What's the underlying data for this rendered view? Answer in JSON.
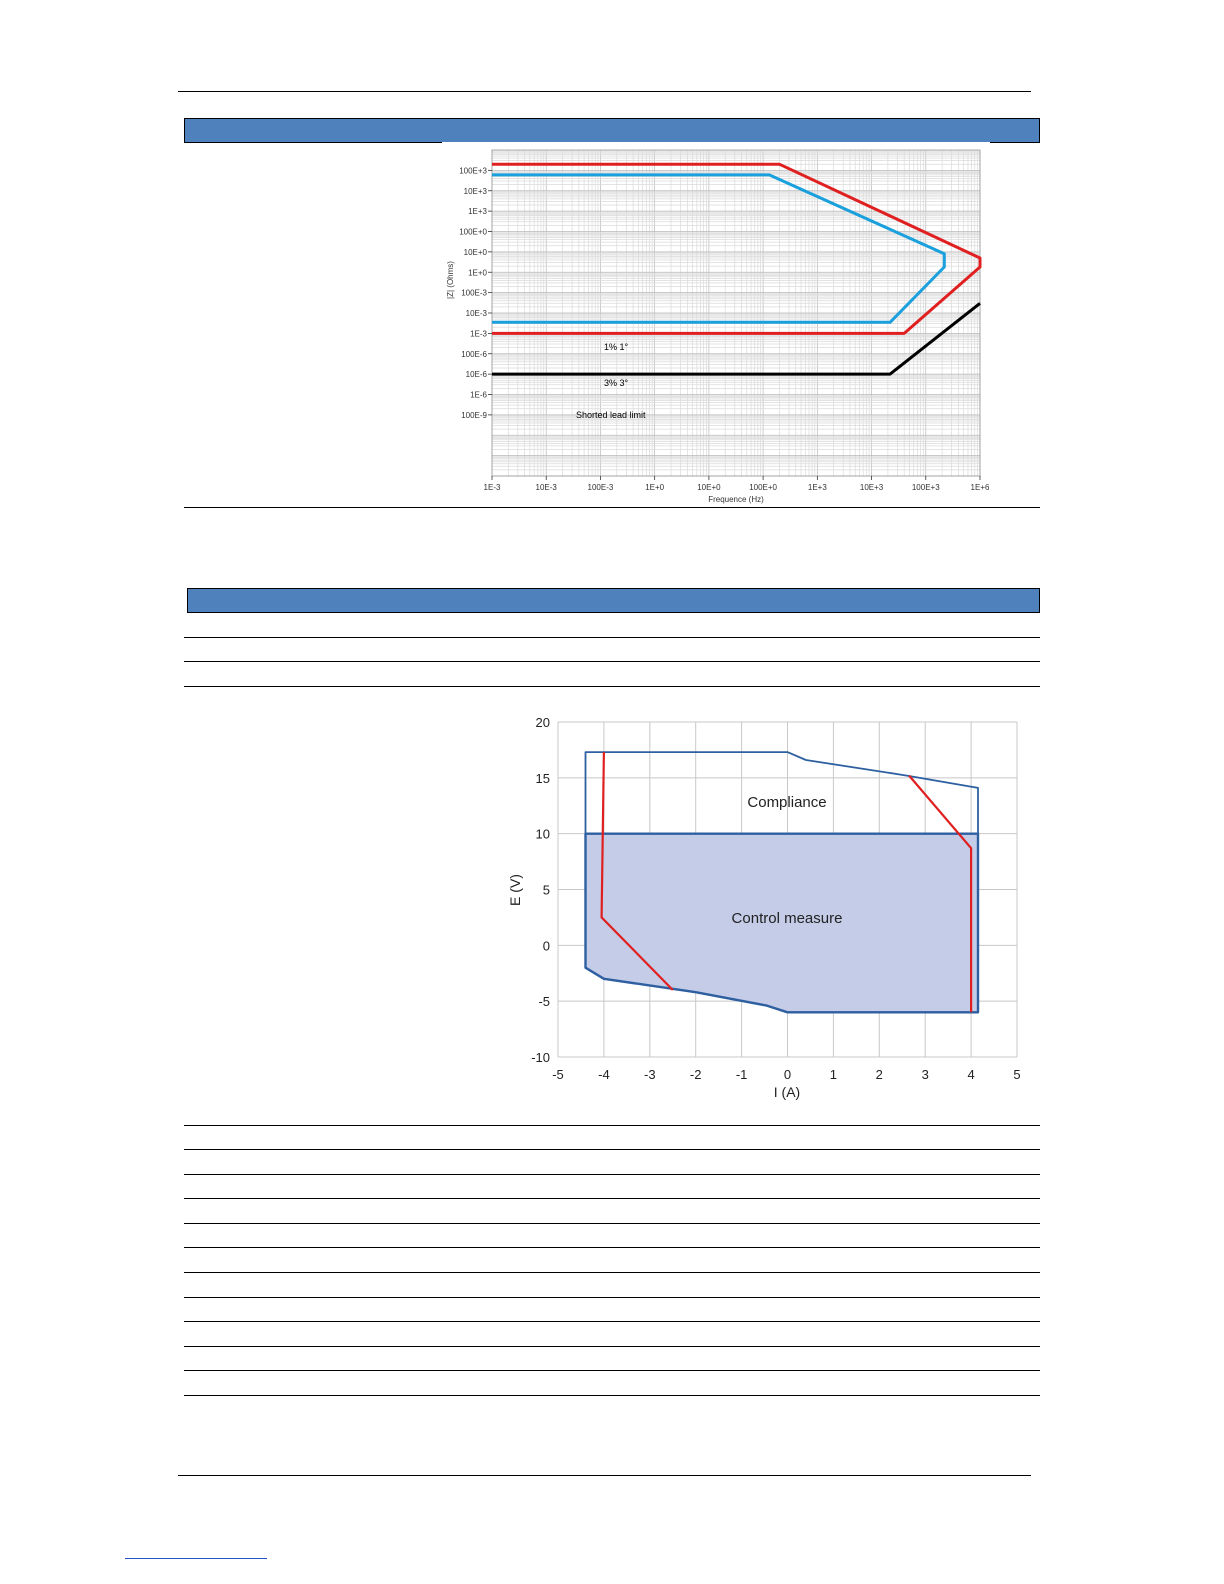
{
  "page": {
    "colors": {
      "section_bar": "#4f81bd",
      "rule": "#000000"
    }
  },
  "chart_data": [
    {
      "type": "line",
      "title": "",
      "xlabel": "Frequence (Hz)",
      "ylabel": "|Z| (Ohms)",
      "x_scale": "log",
      "y_scale": "log",
      "xlim": [
        0.001,
        1000000
      ],
      "ylim": [
        1e-10,
        1000000
      ],
      "x_ticks": [
        {
          "v": 0.001,
          "label": "1E-3"
        },
        {
          "v": 0.01,
          "label": "10E-3"
        },
        {
          "v": 0.1,
          "label": "100E-3"
        },
        {
          "v": 1,
          "label": "1E+0"
        },
        {
          "v": 10,
          "label": "10E+0"
        },
        {
          "v": 100,
          "label": "100E+0"
        },
        {
          "v": 1000,
          "label": "1E+3"
        },
        {
          "v": 10000,
          "label": "10E+3"
        },
        {
          "v": 100000,
          "label": "100E+3"
        },
        {
          "v": 1000000,
          "label": "1E+6"
        }
      ],
      "y_ticks": [
        {
          "v": 100000,
          "label": "100E+3"
        },
        {
          "v": 10000,
          "label": "10E+3"
        },
        {
          "v": 1000,
          "label": "1E+3"
        },
        {
          "v": 100,
          "label": "100E+0"
        },
        {
          "v": 10,
          "label": "10E+0"
        },
        {
          "v": 1,
          "label": "1E+0"
        },
        {
          "v": 0.1,
          "label": "100E-3"
        },
        {
          "v": 0.01,
          "label": "10E-3"
        },
        {
          "v": 0.001,
          "label": "1E-3"
        },
        {
          "v": 0.0001,
          "label": "100E-6"
        },
        {
          "v": 1e-05,
          "label": "10E-6"
        },
        {
          "v": 1e-06,
          "label": "1E-6"
        },
        {
          "v": 1e-07,
          "label": "100E-9"
        }
      ],
      "grid": true,
      "annotations": [
        "1% 1°",
        "3% 3°",
        "Shorted lead limit"
      ],
      "series": [
        {
          "color": "#e02020",
          "points": [
            [
              0.001,
              200000
            ],
            [
              200,
              200000
            ],
            [
              1000000,
              5
            ],
            [
              1000000,
              1.8
            ],
            [
              40000,
              0.001
            ],
            [
              0.001,
              0.001
            ]
          ]
        },
        {
          "color": "#1aa0dc",
          "points": [
            [
              0.001,
              60000
            ],
            [
              130,
              60000
            ],
            [
              220000,
              8
            ],
            [
              220000,
              1.8
            ],
            [
              22000,
              0.0035
            ],
            [
              0.001,
              0.0035
            ]
          ]
        },
        {
          "color": "#000000",
          "points": [
            [
              0.001,
              1e-05
            ],
            [
              22000,
              1e-05
            ],
            [
              1000000,
              0.03
            ]
          ]
        }
      ]
    },
    {
      "type": "area",
      "title": "",
      "xlabel": "I (A)",
      "ylabel": "E (V)",
      "xlim": [
        -5,
        5
      ],
      "ylim": [
        -10,
        20
      ],
      "x_ticks": [
        -5,
        -4,
        -3,
        -2,
        -1,
        0,
        1,
        2,
        3,
        4,
        5
      ],
      "y_ticks": [
        -10,
        -5,
        0,
        5,
        10,
        15,
        20
      ],
      "grid": true,
      "regions": [
        {
          "label": "Compliance",
          "fill": "none",
          "stroke": "#2e5fa0",
          "points": [
            [
              -4.4,
              17.3
            ],
            [
              0,
              17.3
            ],
            [
              0.4,
              16.6
            ],
            [
              2.6,
              15.2
            ],
            [
              4.15,
              14.1
            ],
            [
              4.15,
              -6
            ],
            [
              0,
              -6
            ],
            [
              -0.45,
              -5.4
            ],
            [
              -2,
              -4.2
            ],
            [
              -4,
              -3
            ],
            [
              -4.4,
              -2
            ]
          ]
        },
        {
          "label": "Control measure",
          "fill": "#c4cce8",
          "stroke": "#2e5fa0",
          "points": [
            [
              -4.4,
              10
            ],
            [
              4.15,
              10
            ],
            [
              4.15,
              -6
            ],
            [
              0,
              -6
            ],
            [
              -0.45,
              -5.4
            ],
            [
              -2,
              -4.2
            ],
            [
              -4,
              -3
            ],
            [
              -4.4,
              -2
            ]
          ]
        }
      ],
      "series": [
        {
          "color": "#e02020",
          "points": [
            [
              -4,
              17.3
            ],
            [
              -4.05,
              2.5
            ],
            [
              -2.5,
              -4
            ]
          ]
        },
        {
          "color": "#e02020",
          "points": [
            [
              2.65,
              15.2
            ],
            [
              4,
              8.7
            ],
            [
              4,
              -6
            ]
          ]
        }
      ]
    }
  ]
}
